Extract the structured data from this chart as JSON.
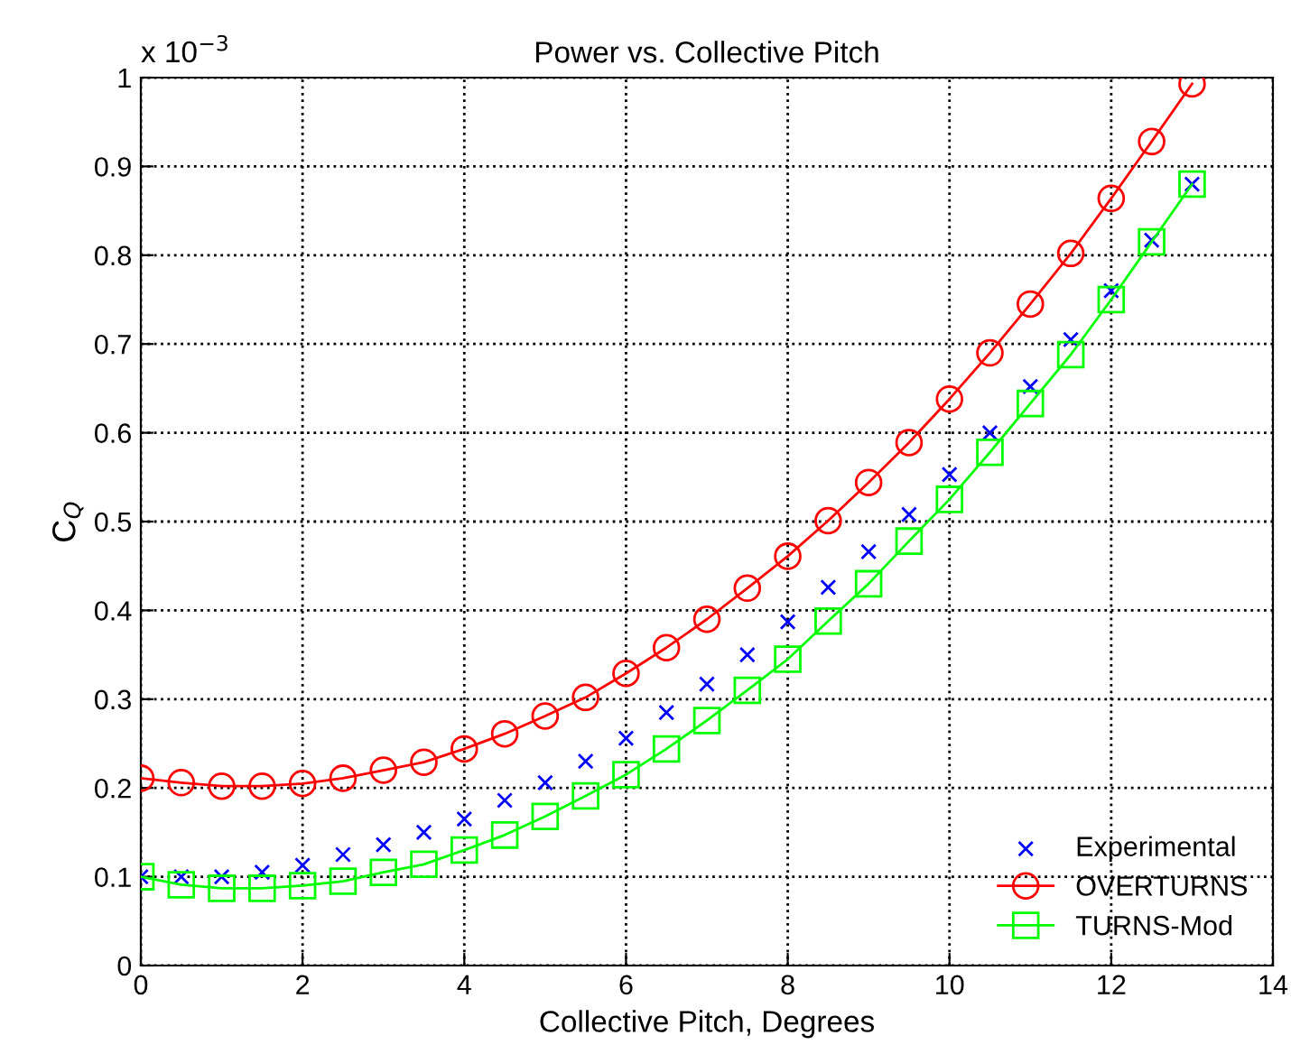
{
  "chart_data": {
    "type": "line",
    "title": "Power vs. Collective Pitch",
    "xlabel": "Collective Pitch, Degrees",
    "ylabel": "C$_{Q}$",
    "annotations": [
      "x 10$^{−3}$"
    ],
    "x": [
      0,
      0.5,
      1,
      1.5,
      2,
      2.5,
      3,
      3.5,
      4,
      4.5,
      5,
      5.5,
      6,
      6.5,
      7,
      7.5,
      8,
      8.5,
      9,
      9.5,
      10,
      10.5,
      11,
      11.5,
      12,
      12.5,
      13
    ],
    "series": [
      {
        "name": "Experimental",
        "type": "scatter",
        "marker": "cross",
        "color": "#0000ff",
        "values": [
          0.1,
          0.1,
          0.1,
          0.105,
          0.113,
          0.125,
          0.136,
          0.15,
          0.165,
          0.186,
          0.206,
          0.23,
          0.256,
          0.285,
          0.317,
          0.35,
          0.387,
          0.426,
          0.466,
          0.508,
          0.553,
          0.6,
          0.652,
          0.705,
          0.76,
          0.817,
          0.88
        ]
      },
      {
        "name": "OVERTURNS",
        "marker": "circle",
        "color": "#ff0000",
        "values": [
          0.211,
          0.206,
          0.202,
          0.202,
          0.205,
          0.211,
          0.22,
          0.229,
          0.244,
          0.261,
          0.281,
          0.302,
          0.329,
          0.358,
          0.39,
          0.425,
          0.461,
          0.501,
          0.544,
          0.589,
          0.638,
          0.69,
          0.745,
          0.802,
          0.864,
          0.928,
          0.993
        ]
      },
      {
        "name": "TURNS-Mod",
        "marker": "square",
        "color": "#00ff00",
        "values": [
          0.1,
          0.091,
          0.087,
          0.087,
          0.09,
          0.095,
          0.105,
          0.114,
          0.13,
          0.147,
          0.168,
          0.191,
          0.215,
          0.244,
          0.276,
          0.31,
          0.345,
          0.388,
          0.43,
          0.478,
          0.525,
          0.578,
          0.633,
          0.688,
          0.75,
          0.815,
          0.88
        ]
      }
    ],
    "xlim": [
      0,
      14
    ],
    "xticks": [
      0,
      2,
      4,
      6,
      8,
      10,
      12,
      14
    ],
    "ylim": [
      0,
      1
    ],
    "yticks": [
      0,
      0.1,
      0.2,
      0.3,
      0.4,
      0.5,
      0.6,
      0.7,
      0.8,
      0.9,
      1
    ],
    "grid": true,
    "legend": "bottom right"
  }
}
